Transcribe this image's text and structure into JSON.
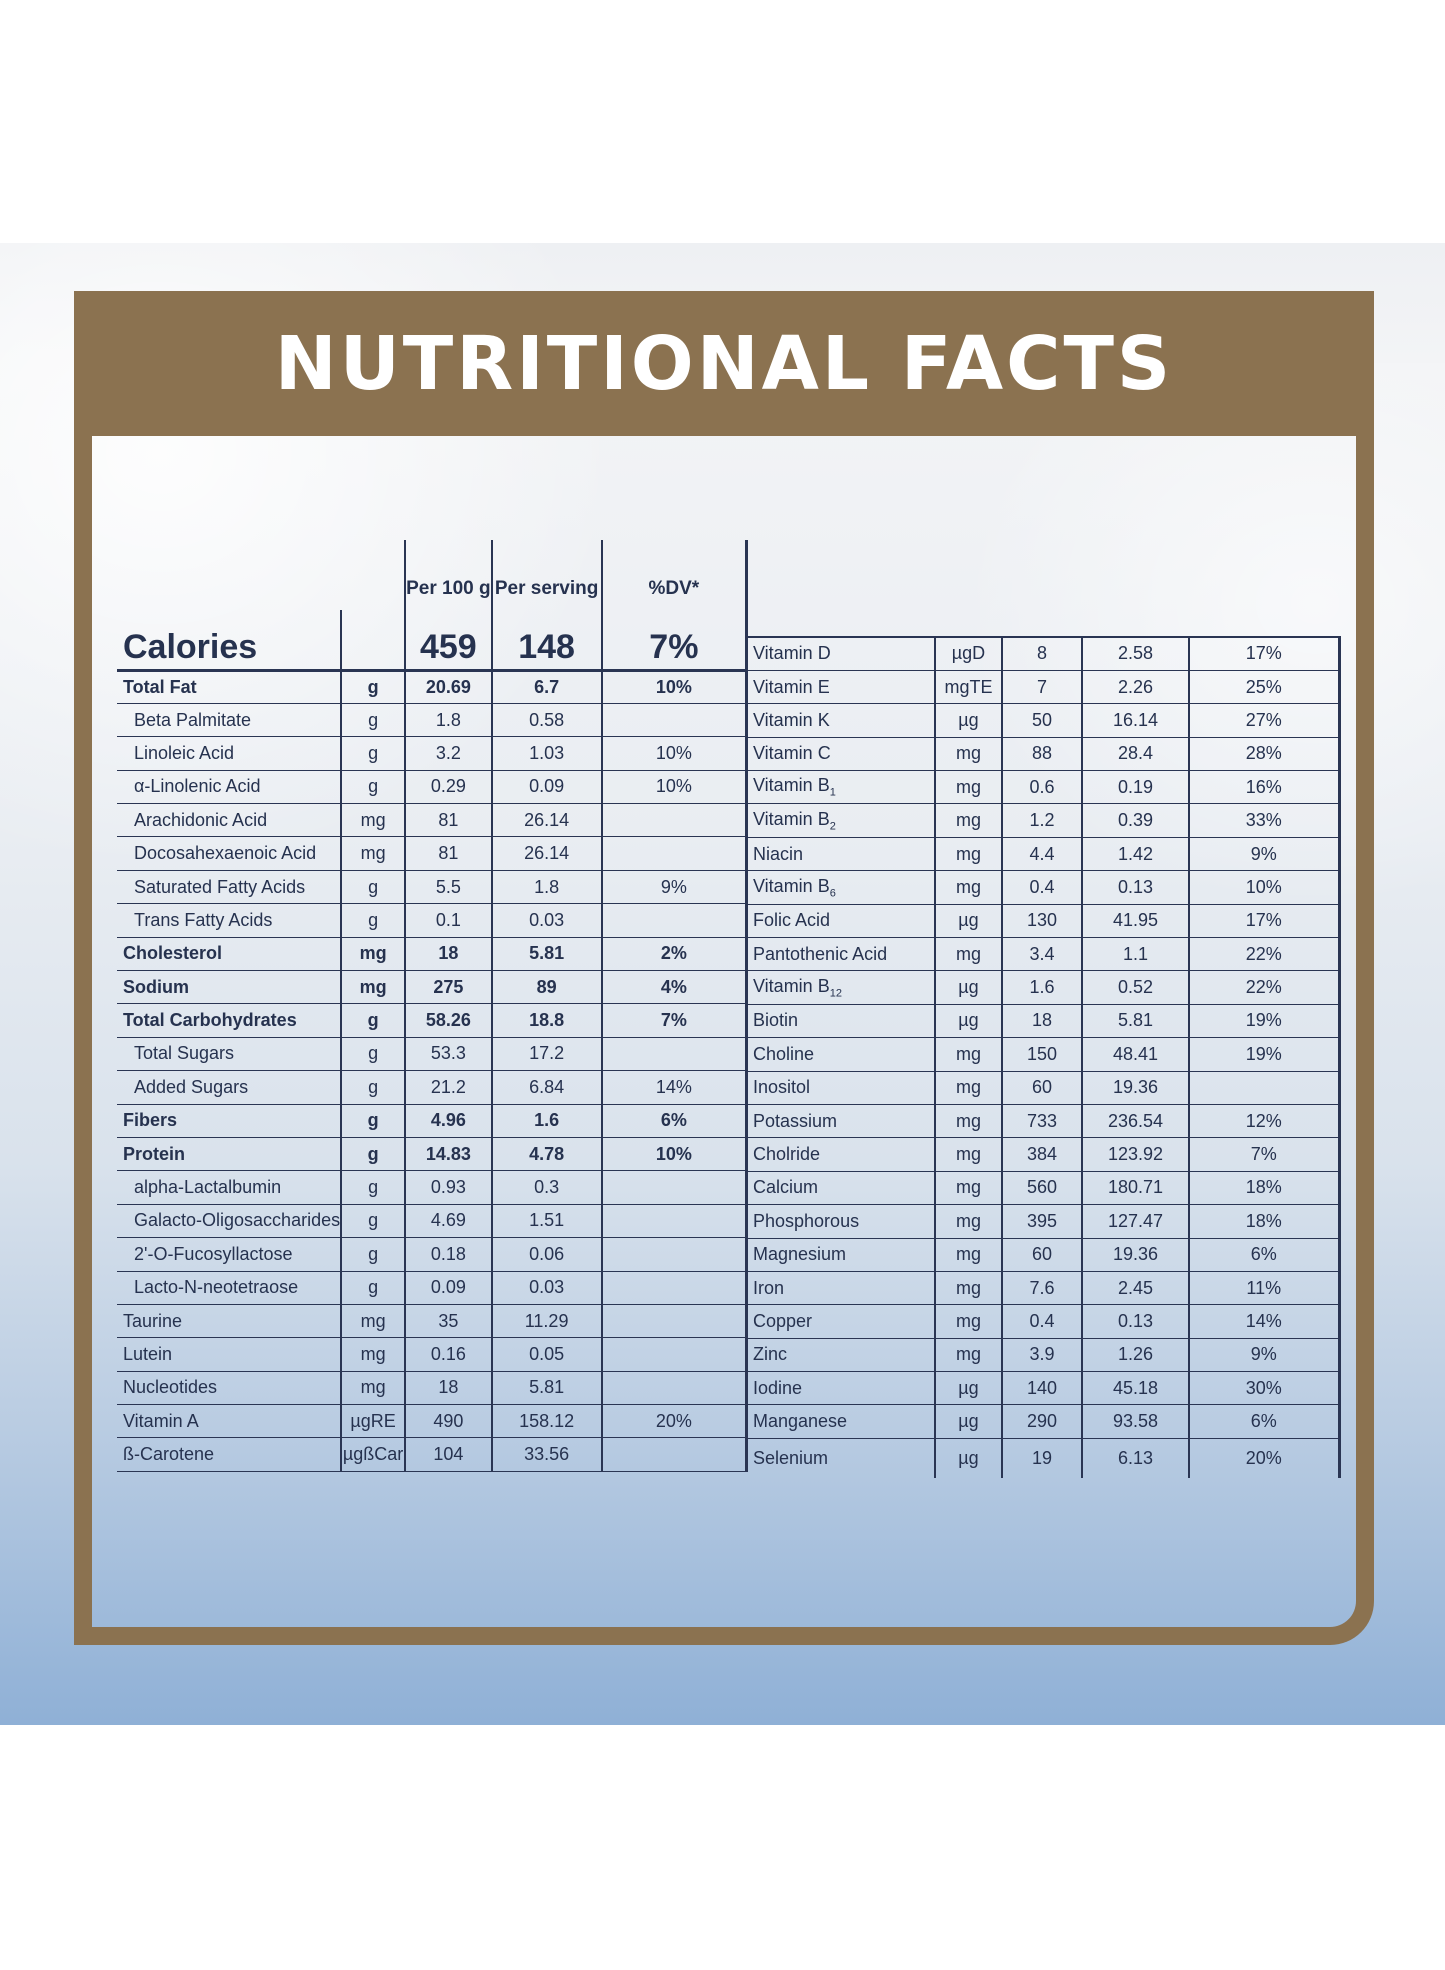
{
  "title": "NUTRITIONAL FACTS",
  "left_table": {
    "headers": {
      "per100": "Per 100 g",
      "serving": "Per serving",
      "dv": "%DV*"
    },
    "calories": {
      "label": "Calories",
      "per100": "459",
      "serving": "148",
      "dv": "7%"
    },
    "rows": [
      {
        "name": "Total Fat",
        "unit": "g",
        "per100": "20.69",
        "serving": "6.7",
        "dv": "10%",
        "bold": true,
        "indent": false
      },
      {
        "name": "Beta Palmitate",
        "unit": "g",
        "per100": "1.8",
        "serving": "0.58",
        "dv": "",
        "bold": false,
        "indent": true
      },
      {
        "name": "Linoleic Acid",
        "unit": "g",
        "per100": "3.2",
        "serving": "1.03",
        "dv": "10%",
        "bold": false,
        "indent": true
      },
      {
        "name": "α-Linolenic Acid",
        "unit": "g",
        "per100": "0.29",
        "serving": "0.09",
        "dv": "10%",
        "bold": false,
        "indent": true
      },
      {
        "name": "Arachidonic Acid",
        "unit": "mg",
        "per100": "81",
        "serving": "26.14",
        "dv": "",
        "bold": false,
        "indent": true
      },
      {
        "name": "Docosahexaenoic Acid",
        "unit": "mg",
        "per100": "81",
        "serving": "26.14",
        "dv": "",
        "bold": false,
        "indent": true
      },
      {
        "name": "Saturated Fatty Acids",
        "unit": "g",
        "per100": "5.5",
        "serving": "1.8",
        "dv": "9%",
        "bold": false,
        "indent": true
      },
      {
        "name": "Trans Fatty Acids",
        "unit": "g",
        "per100": "0.1",
        "serving": "0.03",
        "dv": "",
        "bold": false,
        "indent": true
      },
      {
        "name": "Cholesterol",
        "unit": "mg",
        "per100": "18",
        "serving": "5.81",
        "dv": "2%",
        "bold": true,
        "indent": false
      },
      {
        "name": "Sodium",
        "unit": "mg",
        "per100": "275",
        "serving": "89",
        "dv": "4%",
        "bold": true,
        "indent": false
      },
      {
        "name": "Total Carbohydrates",
        "unit": "g",
        "per100": "58.26",
        "serving": "18.8",
        "dv": "7%",
        "bold": true,
        "indent": false
      },
      {
        "name": "Total Sugars",
        "unit": "g",
        "per100": "53.3",
        "serving": "17.2",
        "dv": "",
        "bold": false,
        "indent": true
      },
      {
        "name": "Added Sugars",
        "unit": "g",
        "per100": "21.2",
        "serving": "6.84",
        "dv": "14%",
        "bold": false,
        "indent": true
      },
      {
        "name": "Fibers",
        "unit": "g",
        "per100": "4.96",
        "serving": "1.6",
        "dv": "6%",
        "bold": true,
        "indent": false
      },
      {
        "name": "Protein",
        "unit": "g",
        "per100": "14.83",
        "serving": "4.78",
        "dv": "10%",
        "bold": true,
        "indent": false
      },
      {
        "name": "alpha-Lactalbumin",
        "unit": "g",
        "per100": "0.93",
        "serving": "0.3",
        "dv": "",
        "bold": false,
        "indent": true
      },
      {
        "name": "Galacto-Oligosaccharides",
        "unit": "g",
        "per100": "4.69",
        "serving": "1.51",
        "dv": "",
        "bold": false,
        "indent": true
      },
      {
        "name": "2'-O-Fucosyllactose",
        "unit": "g",
        "per100": "0.18",
        "serving": "0.06",
        "dv": "",
        "bold": false,
        "indent": true
      },
      {
        "name": "Lacto-N-neotetraose",
        "unit": "g",
        "per100": "0.09",
        "serving": "0.03",
        "dv": "",
        "bold": false,
        "indent": true
      },
      {
        "name": "Taurine",
        "unit": "mg",
        "per100": "35",
        "serving": "11.29",
        "dv": "",
        "bold": false,
        "indent": false
      },
      {
        "name": "Lutein",
        "unit": "mg",
        "per100": "0.16",
        "serving": "0.05",
        "dv": "",
        "bold": false,
        "indent": false
      },
      {
        "name": "Nucleotides",
        "unit": "mg",
        "per100": "18",
        "serving": "5.81",
        "dv": "",
        "bold": false,
        "indent": false
      },
      {
        "name": "Vitamin A",
        "unit": "µgRE",
        "per100": "490",
        "serving": "158.12",
        "dv": "20%",
        "bold": false,
        "indent": false
      },
      {
        "name": "ß-Carotene",
        "unit": "µgßCar",
        "per100": "104",
        "serving": "33.56",
        "dv": "",
        "bold": false,
        "indent": false
      }
    ]
  },
  "right_table": {
    "rows": [
      {
        "name": "Vitamin D",
        "sub": "",
        "unit": "µgD",
        "per100": "8",
        "serving": "2.58",
        "dv": "17%"
      },
      {
        "name": "Vitamin E",
        "sub": "",
        "unit": "mgTE",
        "per100": "7",
        "serving": "2.26",
        "dv": "25%"
      },
      {
        "name": "Vitamin K",
        "sub": "",
        "unit": "µg",
        "per100": "50",
        "serving": "16.14",
        "dv": "27%"
      },
      {
        "name": "Vitamin C",
        "sub": "",
        "unit": "mg",
        "per100": "88",
        "serving": "28.4",
        "dv": "28%"
      },
      {
        "name": "Vitamin B",
        "sub": "1",
        "unit": "mg",
        "per100": "0.6",
        "serving": "0.19",
        "dv": "16%"
      },
      {
        "name": "Vitamin B",
        "sub": "2",
        "unit": "mg",
        "per100": "1.2",
        "serving": "0.39",
        "dv": "33%"
      },
      {
        "name": "Niacin",
        "sub": "",
        "unit": "mg",
        "per100": "4.4",
        "serving": "1.42",
        "dv": "9%"
      },
      {
        "name": "Vitamin B",
        "sub": "6",
        "unit": "mg",
        "per100": "0.4",
        "serving": "0.13",
        "dv": "10%"
      },
      {
        "name": "Folic Acid",
        "sub": "",
        "unit": "µg",
        "per100": "130",
        "serving": "41.95",
        "dv": "17%"
      },
      {
        "name": "Pantothenic Acid",
        "sub": "",
        "unit": "mg",
        "per100": "3.4",
        "serving": "1.1",
        "dv": "22%"
      },
      {
        "name": "Vitamin B",
        "sub": "12",
        "unit": "µg",
        "per100": "1.6",
        "serving": "0.52",
        "dv": "22%"
      },
      {
        "name": "Biotin",
        "sub": "",
        "unit": "µg",
        "per100": "18",
        "serving": "5.81",
        "dv": "19%"
      },
      {
        "name": "Choline",
        "sub": "",
        "unit": "mg",
        "per100": "150",
        "serving": "48.41",
        "dv": "19%"
      },
      {
        "name": "Inositol",
        "sub": "",
        "unit": "mg",
        "per100": "60",
        "serving": "19.36",
        "dv": ""
      },
      {
        "name": "Potassium",
        "sub": "",
        "unit": "mg",
        "per100": "733",
        "serving": "236.54",
        "dv": "12%"
      },
      {
        "name": "Cholride",
        "sub": "",
        "unit": "mg",
        "per100": "384",
        "serving": "123.92",
        "dv": "7%"
      },
      {
        "name": "Calcium",
        "sub": "",
        "unit": "mg",
        "per100": "560",
        "serving": "180.71",
        "dv": "18%"
      },
      {
        "name": "Phosphorous",
        "sub": "",
        "unit": "mg",
        "per100": "395",
        "serving": "127.47",
        "dv": "18%"
      },
      {
        "name": "Magnesium",
        "sub": "",
        "unit": "mg",
        "per100": "60",
        "serving": "19.36",
        "dv": "6%"
      },
      {
        "name": "Iron",
        "sub": "",
        "unit": "mg",
        "per100": "7.6",
        "serving": "2.45",
        "dv": "11%"
      },
      {
        "name": "Copper",
        "sub": "",
        "unit": "mg",
        "per100": "0.4",
        "serving": "0.13",
        "dv": "14%"
      },
      {
        "name": "Zinc",
        "sub": "",
        "unit": "mg",
        "per100": "3.9",
        "serving": "1.26",
        "dv": "9%"
      },
      {
        "name": "Iodine",
        "sub": "",
        "unit": "µg",
        "per100": "140",
        "serving": "45.18",
        "dv": "30%"
      },
      {
        "name": "Manganese",
        "sub": "",
        "unit": "µg",
        "per100": "290",
        "serving": "93.58",
        "dv": "6%"
      },
      {
        "name": "Selenium",
        "sub": "",
        "unit": "µg",
        "per100": "19",
        "serving": "6.13",
        "dv": "20%"
      }
    ]
  }
}
